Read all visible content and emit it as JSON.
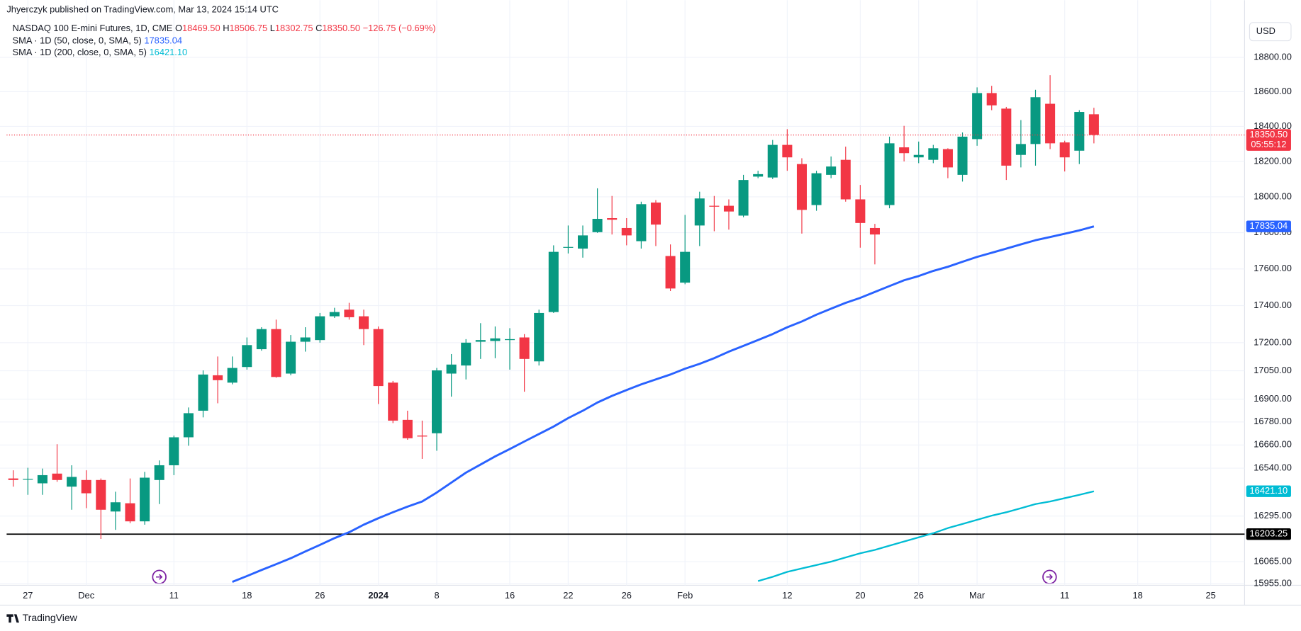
{
  "header": {
    "publisher": "Jhyerczyk published on TradingView.com, Mar 13, 2024 15:14 UTC",
    "currency": "USD",
    "footer": "TradingView"
  },
  "chart_data": {
    "type": "candlestick",
    "log": true,
    "grid": true,
    "up_color": "#089981",
    "down_color": "#f23645",
    "legend": {
      "title": "NASDAQ 100 E-mini Futures, 1D, CME",
      "items": [
        {
          "prefix": "O",
          "text": "18469.50"
        },
        {
          "prefix": "H",
          "text": "18506.75"
        },
        {
          "prefix": "L",
          "text": "18302.75"
        },
        {
          "prefix": "C",
          "text": "18350.50"
        }
      ],
      "change": "−126.75 (−0.69%)"
    },
    "ylim": [
      15947,
      19030
    ],
    "yticks": [
      {
        "value": 15955,
        "label": "15955.00"
      },
      {
        "value": 16065,
        "label": "16065.00"
      },
      {
        "value": 16295,
        "label": "16295.00"
      },
      {
        "value": 16540,
        "label": "16540.00"
      },
      {
        "value": 16660,
        "label": "16660.00"
      },
      {
        "value": 16780,
        "label": "16780.00"
      },
      {
        "value": 16900,
        "label": "16900.00"
      },
      {
        "value": 17050,
        "label": "17050.00"
      },
      {
        "value": 17200,
        "label": "17200.00"
      },
      {
        "value": 17400,
        "label": "17400.00"
      },
      {
        "value": 17600,
        "label": "17600.00"
      },
      {
        "value": 17800,
        "label": "17800.00"
      },
      {
        "value": 18000,
        "label": "18000.00"
      },
      {
        "value": 18200,
        "label": "18200.00"
      },
      {
        "value": 18400,
        "label": "18400.00"
      },
      {
        "value": 18600,
        "label": "18600.00"
      },
      {
        "value": 18800,
        "label": "18800.00"
      }
    ],
    "categories": [
      null,
      "27",
      null,
      null,
      null,
      "Dec",
      null,
      null,
      null,
      null,
      null,
      "11",
      null,
      null,
      null,
      null,
      "18",
      null,
      null,
      null,
      null,
      "26",
      null,
      null,
      null,
      "2024",
      null,
      null,
      null,
      "8",
      null,
      null,
      null,
      null,
      "16",
      null,
      null,
      null,
      "22",
      null,
      null,
      null,
      "26",
      null,
      null,
      null,
      "Feb",
      null,
      null,
      null,
      null,
      null,
      null,
      "12",
      null,
      null,
      null,
      null,
      "20",
      null,
      null,
      null,
      "26",
      null,
      null,
      null,
      "Mar",
      null,
      null,
      null,
      null,
      null,
      "11",
      null,
      null,
      null,
      null,
      "18",
      null,
      null,
      null,
      null,
      "25"
    ],
    "open": [
      16487,
      16483,
      16462,
      16512,
      16445,
      16479,
      16479,
      16318,
      16360,
      16268,
      16479,
      16555,
      16700,
      16839,
      17026,
      16987,
      17070,
      17165,
      17273,
      17035,
      17205,
      17214,
      17342,
      17378,
      17342,
      17273,
      16987,
      16791,
      16709,
      16721,
      17035,
      17078,
      17205,
      17209,
      17214,
      17228,
      17100,
      17365,
      17717,
      17712,
      17803,
      17881,
      17826,
      17753,
      17968,
      17671,
      17525,
      17840,
      17950,
      17950,
      17895,
      18114,
      18109,
      18294,
      18185,
      17954,
      18124,
      18209,
      17986,
      17826,
      17954,
      18280,
      18223,
      18209,
      18270,
      18124,
      18327,
      18592,
      18502,
      18237,
      18299,
      18530,
      18308,
      18261,
      18469.5,
      null,
      null,
      null,
      null,
      null,
      null,
      null,
      null
    ],
    "high": [
      16529,
      16542,
      16538,
      16664,
      16555,
      16529,
      16487,
      16419,
      16487,
      16521,
      16580,
      16709,
      16856,
      17052,
      17126,
      17126,
      17228,
      17283,
      17324,
      17241,
      17283,
      17360,
      17388,
      17415,
      17378,
      17287,
      16996,
      16839,
      16787,
      17065,
      17139,
      17219,
      17305,
      17287,
      17278,
      17246,
      17378,
      17730,
      17840,
      17840,
      18048,
      18005,
      17881,
      17973,
      17982,
      17735,
      17899,
      18029,
      18005,
      17986,
      18124,
      18147,
      18322,
      18384,
      18218,
      18147,
      18228,
      18284,
      18067,
      17849,
      18341,
      18403,
      18313,
      18294,
      18275,
      18365,
      18625,
      18634,
      18512,
      18436,
      18611,
      18696,
      18318,
      18493,
      18506.75,
      null,
      null,
      null,
      null,
      null,
      null,
      null,
      null
    ],
    "low": [
      16445,
      16403,
      16403,
      16470,
      16327,
      16335,
      16179,
      16225,
      16259,
      16251,
      16356,
      16504,
      16656,
      16804,
      16878,
      16978,
      17056,
      17157,
      17013,
      17026,
      17152,
      17200,
      17333,
      17324,
      17187,
      16874,
      16774,
      16687,
      16588,
      16630,
      16913,
      17004,
      17113,
      17117,
      17056,
      16939,
      17078,
      17360,
      17685,
      17662,
      17799,
      17790,
      17730,
      17712,
      17726,
      17479,
      17516,
      17726,
      17808,
      17817,
      17886,
      18105,
      18100,
      18147,
      17795,
      17922,
      18105,
      17973,
      17717,
      17625,
      17936,
      18200,
      18190,
      18190,
      18105,
      18086,
      18289,
      18493,
      18095,
      18166,
      18176,
      18270,
      18143,
      18185,
      18302.75,
      null,
      null,
      null,
      null,
      null,
      null,
      null,
      null
    ],
    "close": [
      16479,
      16485,
      16504,
      16479,
      16495,
      16411,
      16327,
      16365,
      16268,
      16491,
      16555,
      16700,
      16826,
      17030,
      17000,
      17065,
      17187,
      17273,
      17017,
      17205,
      17228,
      17342,
      17365,
      17337,
      17273,
      16969,
      16787,
      16695,
      16704,
      17052,
      17083,
      17200,
      17214,
      17223,
      17219,
      17113,
      17360,
      17694,
      17721,
      17785,
      17877,
      17872,
      17785,
      17959,
      17845,
      17493,
      17694,
      17991,
      17945,
      17918,
      18095,
      18128,
      18294,
      18223,
      17927,
      18133,
      18171,
      17986,
      17854,
      17790,
      18303,
      18247,
      18237,
      18275,
      18166,
      18341,
      18592,
      18521,
      18176,
      18299,
      18568,
      18303,
      18223,
      18483,
      18350.5,
      null,
      null,
      null,
      null,
      null,
      null,
      null,
      null
    ],
    "series": [
      {
        "name": "SMA · 1D (50, close, 0, SMA, 5)",
        "color": "#2962ff",
        "value_label": "17835.04",
        "values": [
          null,
          null,
          null,
          null,
          null,
          null,
          null,
          null,
          null,
          null,
          null,
          null,
          null,
          null,
          null,
          15964,
          15993,
          16023,
          16052,
          16082,
          16116,
          16149,
          16183,
          16213,
          16251,
          16284,
          16314,
          16343,
          16369,
          16415,
          16466,
          16517,
          16559,
          16601,
          16639,
          16678,
          16717,
          16756,
          16800,
          16839,
          16882,
          16917,
          16948,
          16978,
          17004,
          17030,
          17061,
          17087,
          17117,
          17152,
          17183,
          17214,
          17246,
          17283,
          17314,
          17351,
          17383,
          17415,
          17442,
          17474,
          17506,
          17538,
          17561,
          17589,
          17612,
          17639,
          17666,
          17689,
          17712,
          17735,
          17758,
          17776,
          17794,
          17813,
          17835.04,
          null,
          null,
          null,
          null,
          null,
          null,
          null,
          null
        ]
      },
      {
        "name": "SMA · 1D (200, close, 0, SMA, 5)",
        "color": "#00bcd4",
        "value_label": "16421.10",
        "values": [
          null,
          null,
          null,
          null,
          null,
          null,
          null,
          null,
          null,
          null,
          null,
          null,
          null,
          null,
          null,
          null,
          null,
          null,
          null,
          null,
          null,
          null,
          null,
          null,
          null,
          null,
          null,
          null,
          null,
          null,
          null,
          null,
          null,
          null,
          null,
          null,
          null,
          null,
          null,
          null,
          null,
          null,
          null,
          null,
          null,
          null,
          null,
          null,
          null,
          null,
          null,
          15968,
          15989,
          16014,
          16031,
          16048,
          16065,
          16086,
          16107,
          16124,
          16145,
          16166,
          16187,
          16208,
          16234,
          16255,
          16276,
          16297,
          16314,
          16335,
          16356,
          16369,
          16386,
          16403,
          16421.1,
          null,
          null,
          null,
          null,
          null,
          null,
          null,
          null
        ]
      }
    ],
    "hlines": [
      {
        "value": 16203.25,
        "label": "16203.25",
        "color": "#000000"
      }
    ],
    "last_price": {
      "value": 18350.5,
      "label": "18350.50",
      "countdown": "05:55:12",
      "color": "#f23645"
    }
  }
}
